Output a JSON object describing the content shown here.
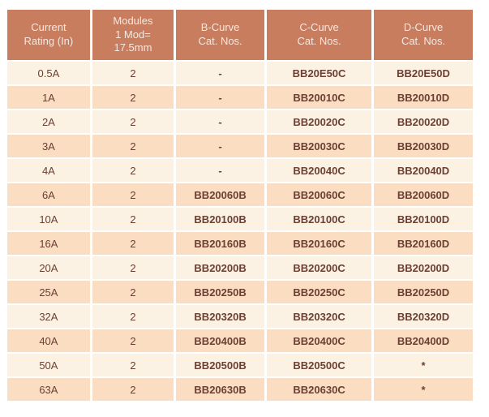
{
  "colors": {
    "header_bg": "#C87D5F",
    "header_text": "#F6E8E0",
    "row_light": "#FCF2E3",
    "row_dark": "#FBDDC2",
    "body_text": "#6B4033"
  },
  "table": {
    "columns": [
      {
        "label": "Current\nRating (In)"
      },
      {
        "label": "Modules\n1 Mod=\n17.5mm"
      },
      {
        "label": "B-Curve\nCat. Nos."
      },
      {
        "label": "C-Curve\nCat. Nos."
      },
      {
        "label": "D-Curve\nCat. Nos."
      }
    ],
    "rows": [
      [
        "0.5A",
        "2",
        "-",
        "BB20E50C",
        "BB20E50D"
      ],
      [
        "1A",
        "2",
        "-",
        "BB20010C",
        "BB20010D"
      ],
      [
        "2A",
        "2",
        "-",
        "BB20020C",
        "BB20020D"
      ],
      [
        "3A",
        "2",
        "-",
        "BB20030C",
        "BB20030D"
      ],
      [
        "4A",
        "2",
        "-",
        "BB20040C",
        "BB20040D"
      ],
      [
        "6A",
        "2",
        "BB20060B",
        "BB20060C",
        "BB20060D"
      ],
      [
        "10A",
        "2",
        "BB20100B",
        "BB20100C",
        "BB20100D"
      ],
      [
        "16A",
        "2",
        "BB20160B",
        "BB20160C",
        "BB20160D"
      ],
      [
        "20A",
        "2",
        "BB20200B",
        "BB20200C",
        "BB20200D"
      ],
      [
        "25A",
        "2",
        "BB20250B",
        "BB20250C",
        "BB20250D"
      ],
      [
        "32A",
        "2",
        "BB20320B",
        "BB20320C",
        "BB20320D"
      ],
      [
        "40A",
        "2",
        "BB20400B",
        "BB20400C",
        "BB20400D"
      ],
      [
        "50A",
        "2",
        "BB20500B",
        "BB20500C",
        "*"
      ],
      [
        "63A",
        "2",
        "BB20630B",
        "BB20630C",
        "*"
      ]
    ]
  }
}
